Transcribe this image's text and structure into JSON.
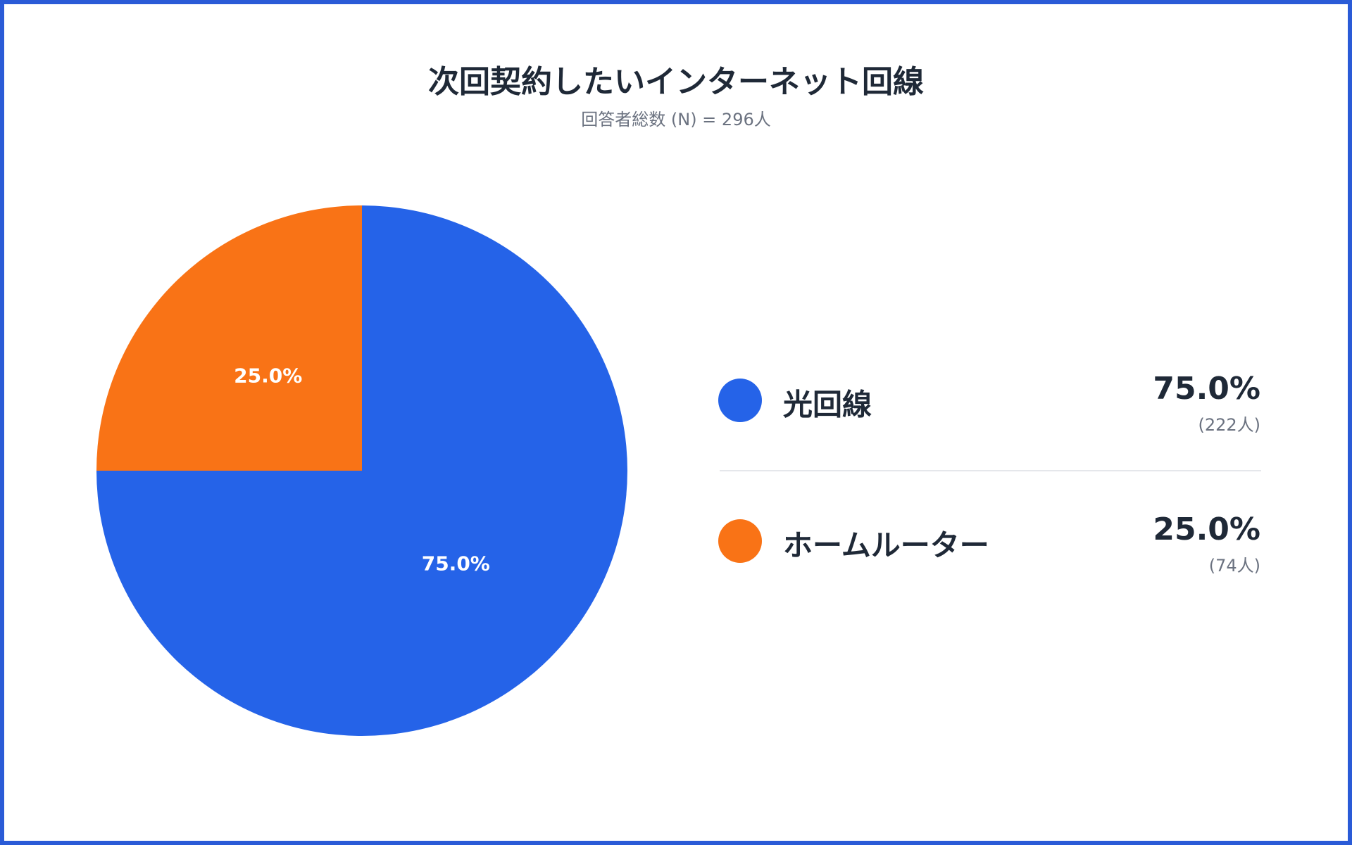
{
  "chart_data": {
    "type": "pie",
    "title": "次回契約したいインターネット回線",
    "subtitle": "回答者総数 (N) = 296人",
    "categories": [
      "光回線",
      "ホームルーター"
    ],
    "values": [
      75.0,
      25.0
    ],
    "value_labels": [
      "75.0%",
      "25.0%"
    ],
    "counts": [
      222,
      74
    ],
    "count_labels": [
      "(222人)",
      "(74人)"
    ],
    "colors": [
      "#2563e8",
      "#f97316"
    ]
  }
}
